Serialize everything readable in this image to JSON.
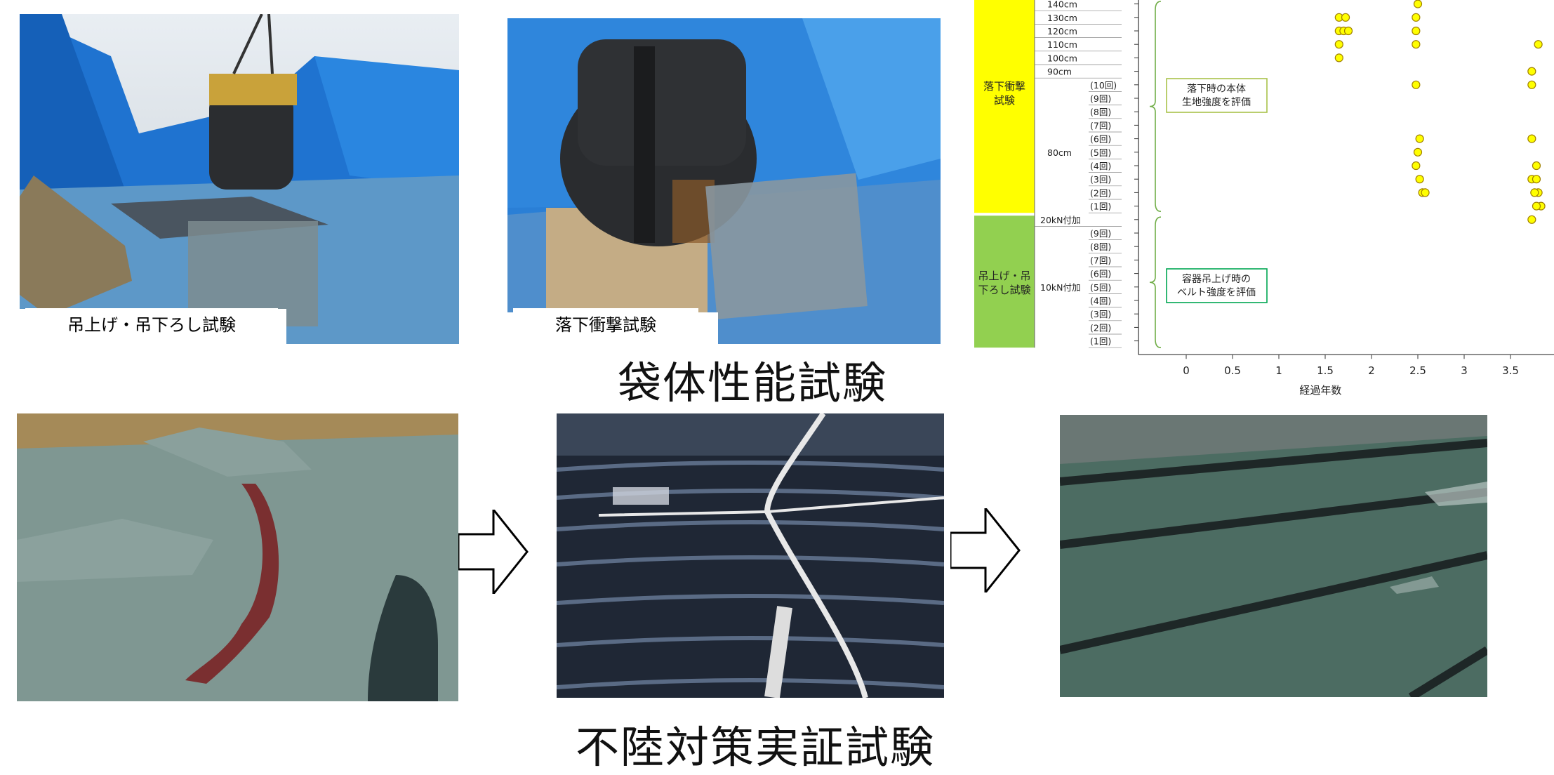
{
  "photos": {
    "lifting_caption": "吊上げ・吊下ろし試験",
    "drop_caption": "落下衝撃試験"
  },
  "titles": {
    "bag_performance": "袋体性能試験",
    "settlement": "不陸対策実証試験"
  },
  "colors": {
    "drop_band": "#ffff00",
    "lift_band": "#92d050",
    "point_fill": "#ffff00",
    "point_stroke": "#a08000",
    "bracket_green": "#70ad47",
    "drop_note_border": "#a9c24a",
    "lift_note_border": "#00a651"
  },
  "chart_data": {
    "type": "scatter",
    "xlabel": "経過年数",
    "xticks": [
      "0",
      "0.5",
      "1",
      "1.5",
      "2",
      "2.5",
      "3",
      "3.5"
    ],
    "xlim": [
      -0.5,
      3.9
    ],
    "groups": [
      {
        "label": "落下衝撃試験",
        "note": "落下時の本体生地強度を評価",
        "rows": [
          "140cm",
          "130cm",
          "120cm",
          "110cm",
          "100cm",
          "90cm",
          "80cm"
        ],
        "sub_rows": [
          "(10回)",
          "(9回)",
          "(8回)",
          "(7回)",
          "(6回)",
          "(5回)",
          "(4回)",
          "(3回)",
          "(2回)",
          "(1回)"
        ]
      },
      {
        "label": "吊上げ・吊下ろし試験",
        "note": "容器吊上げ時のベルト強度を評価",
        "rows": [
          "20kN付加",
          "10kN付加"
        ],
        "sub_rows": [
          "(9回)",
          "(8回)",
          "(7回)",
          "(6回)",
          "(5回)",
          "(4回)",
          "(3回)",
          "(2回)",
          "(1回)"
        ]
      }
    ],
    "row_labels": [
      "140cm",
      "130cm",
      "120cm",
      "110cm",
      "100cm",
      "90cm",
      "(10回)",
      "(9回)",
      "(8回)",
      "(7回)",
      "(6回)",
      "(5回)",
      "(4回)",
      "(3回)",
      "(2回)",
      "(1回)",
      "20kN付加",
      "(9回)",
      "(8回)",
      "(7回)",
      "(6回)",
      "(5回)",
      "(4回)",
      "(3回)",
      "(2回)",
      "(1回)"
    ],
    "points": [
      {
        "x": 1.65,
        "row": "130cm"
      },
      {
        "x": 1.72,
        "row": "130cm"
      },
      {
        "x": 1.65,
        "row": "120cm"
      },
      {
        "x": 1.7,
        "row": "120cm"
      },
      {
        "x": 1.75,
        "row": "120cm"
      },
      {
        "x": 1.65,
        "row": "110cm"
      },
      {
        "x": 1.65,
        "row": "100cm"
      },
      {
        "x": 2.5,
        "row": "140cm"
      },
      {
        "x": 2.48,
        "row": "130cm"
      },
      {
        "x": 2.48,
        "row": "120cm"
      },
      {
        "x": 2.48,
        "row": "110cm"
      },
      {
        "x": 2.48,
        "row": "(10回)"
      },
      {
        "x": 2.52,
        "row": "(6回)"
      },
      {
        "x": 2.5,
        "row": "(5回)"
      },
      {
        "x": 2.48,
        "row": "(4回)"
      },
      {
        "x": 2.52,
        "row": "(3回)"
      },
      {
        "x": 2.55,
        "row": "(2回)"
      },
      {
        "x": 2.58,
        "row": "(2回)"
      },
      {
        "x": 3.8,
        "row": "110cm"
      },
      {
        "x": 3.73,
        "row": "90cm"
      },
      {
        "x": 3.73,
        "row": "(10回)"
      },
      {
        "x": 3.73,
        "row": "(6回)"
      },
      {
        "x": 3.78,
        "row": "(4回)"
      },
      {
        "x": 3.73,
        "row": "(3回)"
      },
      {
        "x": 3.78,
        "row": "(3回)"
      },
      {
        "x": 3.8,
        "row": "(2回)"
      },
      {
        "x": 3.76,
        "row": "(2回)"
      },
      {
        "x": 3.83,
        "row": "(1回)"
      },
      {
        "x": 3.78,
        "row": "(1回)"
      },
      {
        "x": 3.73,
        "row": "20kN付加"
      }
    ]
  }
}
